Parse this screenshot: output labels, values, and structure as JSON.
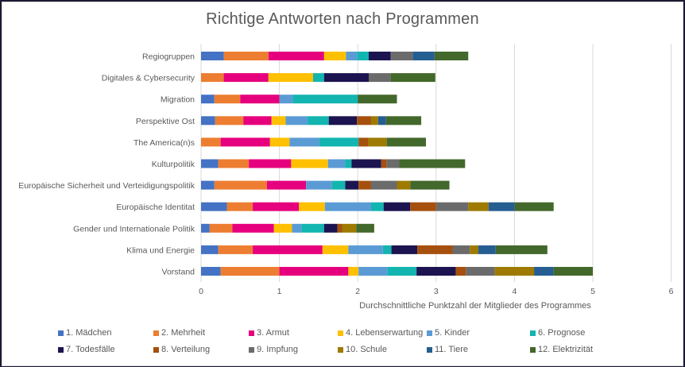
{
  "chart_data": {
    "type": "bar",
    "orientation": "horizontal",
    "stacked": true,
    "title": "Richtige Antworten nach Programmen",
    "xlabel": "Durchschnittliche Punktzahl der Mitglieder des Programmes",
    "ylabel": "",
    "xlim": [
      0,
      6
    ],
    "xticks": [
      "0",
      "1",
      "2",
      "3",
      "4",
      "5",
      "6"
    ],
    "grid": true,
    "legend_position": "bottom",
    "categories": [
      "Regiogruppen",
      "Digitales & Cybersecurity",
      "Migration",
      "Perspektive Ost",
      "The America(n)s",
      "Kulturpolitik",
      "Europäische Sicherheit und Verteidigungspolitik",
      "Europäische Identitat",
      "Gender und Internationale Politik",
      "Klima und Energie",
      "Vorstand"
    ],
    "series": [
      {
        "name": "1. Mädchen",
        "color": "#4472c4",
        "values": [
          0.29,
          0,
          0.17,
          0.18,
          0,
          0.22,
          0.17,
          0.33,
          0.11,
          0.22,
          0.25
        ]
      },
      {
        "name": "2. Mehrheit",
        "color": "#ed7d31",
        "values": [
          0.57,
          0.29,
          0.33,
          0.36,
          0.25,
          0.39,
          0.67,
          0.33,
          0.29,
          0.44,
          0.75
        ]
      },
      {
        "name": "3. Armut",
        "color": "#e6007e",
        "values": [
          0.71,
          0.57,
          0.5,
          0.36,
          0.63,
          0.54,
          0.5,
          0.59,
          0.53,
          0.89,
          0.88
        ]
      },
      {
        "name": "4. Lebenserwartung",
        "color": "#ffc000",
        "values": [
          0.28,
          0.57,
          0,
          0.18,
          0.25,
          0.47,
          0,
          0.33,
          0.23,
          0.33,
          0.13
        ]
      },
      {
        "name": "5. Kinder",
        "color": "#5b9bd5",
        "values": [
          0.14,
          0,
          0.17,
          0.28,
          0.38,
          0.22,
          0.33,
          0.59,
          0.12,
          0.44,
          0.37
        ]
      },
      {
        "name": "6. Prognose",
        "color": "#12b5b0",
        "values": [
          0.15,
          0.14,
          0.83,
          0.27,
          0.5,
          0.08,
          0.17,
          0.16,
          0.29,
          0.11,
          0.37
        ]
      },
      {
        "name": "7. Todesfälle",
        "color": "#1c1450",
        "values": [
          0.28,
          0.57,
          0,
          0.36,
          0,
          0.38,
          0.17,
          0.34,
          0.17,
          0.33,
          0.5
        ]
      },
      {
        "name": "8. Verteilung",
        "color": "#a5500e",
        "values": [
          0,
          0,
          0,
          0.18,
          0.12,
          0.07,
          0.16,
          0.33,
          0.06,
          0.45,
          0.13
        ]
      },
      {
        "name": "9. Impfung",
        "color": "#6b6b6b",
        "values": [
          0.28,
          0.28,
          0,
          0,
          0,
          0.16,
          0.33,
          0.41,
          0,
          0.22,
          0.37
        ]
      },
      {
        "name": "10. Schule",
        "color": "#9e7a00",
        "values": [
          0,
          0,
          0,
          0.09,
          0.24,
          0,
          0.17,
          0.26,
          0.18,
          0.11,
          0.5
        ]
      },
      {
        "name": "11. Tiere",
        "color": "#255e91",
        "values": [
          0.28,
          0,
          0,
          0.1,
          0,
          0,
          0,
          0.33,
          0,
          0.22,
          0.25
        ]
      },
      {
        "name": "12. Elektrizität",
        "color": "#43682b",
        "values": [
          0.43,
          0.57,
          0.5,
          0.45,
          0.5,
          0.84,
          0.5,
          0.5,
          0.23,
          0.66,
          0.5
        ]
      }
    ]
  }
}
